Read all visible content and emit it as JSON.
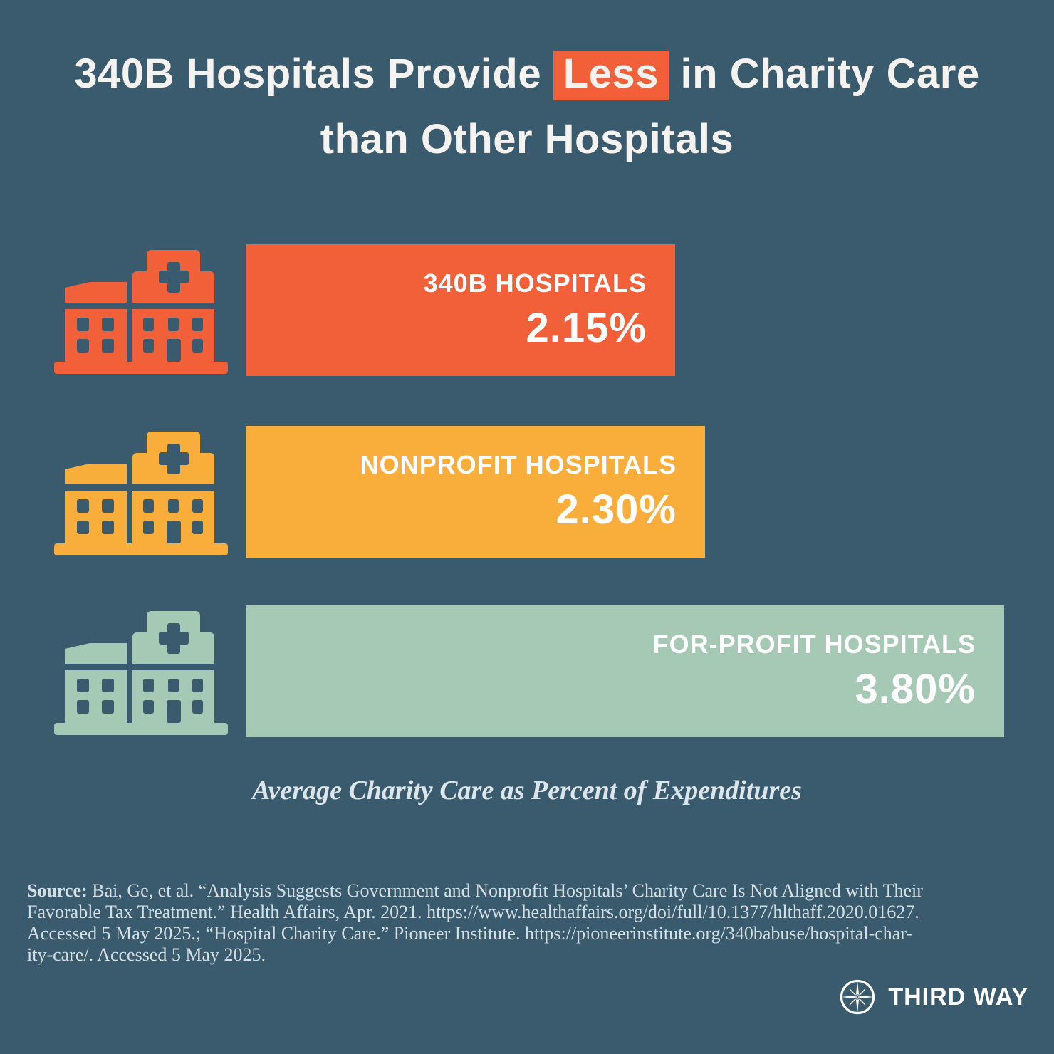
{
  "title": {
    "line1_before": "340B Hospitals Provide",
    "line1_highlight": "Less",
    "line1_after": "in Charity Care",
    "line2": "than Other Hospitals"
  },
  "chart_data": {
    "type": "bar",
    "orientation": "horizontal",
    "title": "340B Hospitals Provide Less in Charity Care than Other Hospitals",
    "caption": "Average Charity Care as Percent of Expenditures",
    "categories": [
      "340B Hospitals",
      "Nonprofit Hospitals",
      "For-Profit Hospitals"
    ],
    "values": [
      2.15,
      2.3,
      3.8
    ],
    "unit": "% of expenditures",
    "xlim": [
      0,
      3.8
    ],
    "legend": "none",
    "grid": false,
    "bars": [
      {
        "label": "340B HOSPITALS",
        "value": 2.15,
        "value_label": "2.15%",
        "color": "#F2603A"
      },
      {
        "label": "NONPROFIT HOSPITALS",
        "value": 2.3,
        "value_label": "2.30%",
        "color": "#F9AE3B"
      },
      {
        "label": "FOR-PROFIT HOSPITALS",
        "value": 3.8,
        "value_label": "3.80%",
        "color": "#A5C9B5"
      }
    ]
  },
  "footer": {
    "source_label": "Source:",
    "lines": [
      "Bai, Ge, et al. “Analysis Suggests Government and Nonprofit Hospitals’ Charity Care Is Not Aligned with Their",
      "Favorable Tax Treatment.” Health Affairs, Apr. 2021. https://www.healthaffairs.org/doi/full/10.1377/hlthaff.2020.01627.",
      "Accessed 5 May 2025.; “Hospital Charity Care.” Pioneer Institute. https://pioneerinstitute.org/340babuse/hospital-char-",
      "ity-care/. Accessed 5 May 2025."
    ]
  },
  "logo": {
    "name": "Third Way",
    "text": "THIRD WAY"
  },
  "colors": {
    "background": "#3A5B6E",
    "title_text": "#F4F3F0",
    "highlight_bg": "#F2603A",
    "bar_text": "#FFFFFF",
    "caption_text": "#DCE6EA",
    "footer_text": "#D3DFE4",
    "logo_white": "#FFFFFF"
  }
}
